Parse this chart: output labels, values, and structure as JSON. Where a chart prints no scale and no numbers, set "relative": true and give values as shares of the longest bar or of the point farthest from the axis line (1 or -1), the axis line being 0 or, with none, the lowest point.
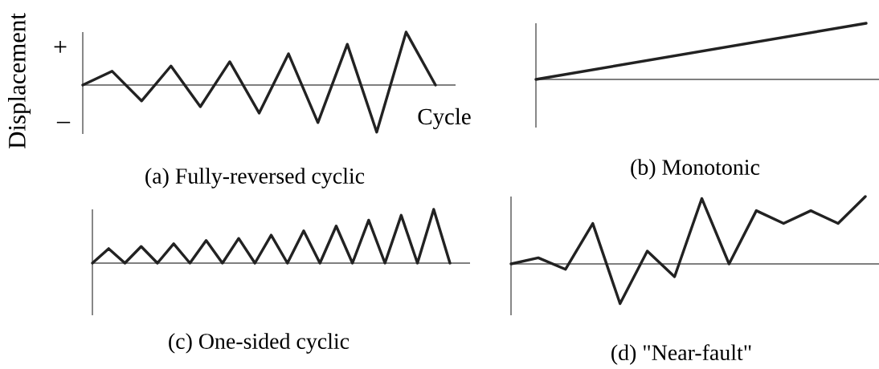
{
  "chart_data": [
    {
      "type": "line",
      "title": "(a) Fully-reversed cyclic",
      "xlabel": "Cycle",
      "ylabel": "Displacement",
      "annotations": [
        "+",
        "–"
      ],
      "relative": true,
      "categories": [
        null,
        null,
        null,
        null,
        null,
        null,
        null,
        null,
        null,
        null,
        null,
        null,
        null
      ],
      "series": [
        {
          "color": "#222222",
          "values": [
            0,
            0.26,
            -0.3,
            0.36,
            -0.41,
            0.44,
            -0.53,
            0.59,
            -0.71,
            0.77,
            -0.89,
            1,
            0
          ]
        }
      ]
    },
    {
      "type": "line",
      "title": "(b) Monotonic",
      "relative": true,
      "categories": [
        null,
        null
      ],
      "series": [
        {
          "color": "#222222",
          "values": [
            0,
            1
          ]
        }
      ]
    },
    {
      "type": "line",
      "title": "(c) One-sided cyclic",
      "relative": true,
      "categories": [
        null,
        null,
        null,
        null,
        null,
        null,
        null,
        null,
        null,
        null,
        null,
        null,
        null,
        null,
        null,
        null,
        null,
        null,
        null,
        null,
        null,
        null,
        null
      ],
      "series": [
        {
          "color": "#222222",
          "values": [
            0,
            0.27,
            0,
            0.31,
            0,
            0.36,
            0,
            0.42,
            0,
            0.46,
            0,
            0.52,
            0,
            0.6,
            0,
            0.69,
            0,
            0.8,
            0,
            0.89,
            0,
            1,
            0
          ]
        }
      ]
    },
    {
      "type": "line",
      "title": "(d) \"Near-fault\"",
      "relative": true,
      "categories": [
        null,
        null,
        null,
        null,
        null,
        null,
        null,
        null,
        null,
        null,
        null,
        null,
        null,
        null
      ],
      "series": [
        {
          "color": "#222222",
          "values": [
            0,
            0.09,
            -0.08,
            0.6,
            -0.59,
            0.19,
            -0.19,
            0.97,
            0,
            0.79,
            0.6,
            0.79,
            0.6,
            1
          ]
        }
      ]
    }
  ]
}
